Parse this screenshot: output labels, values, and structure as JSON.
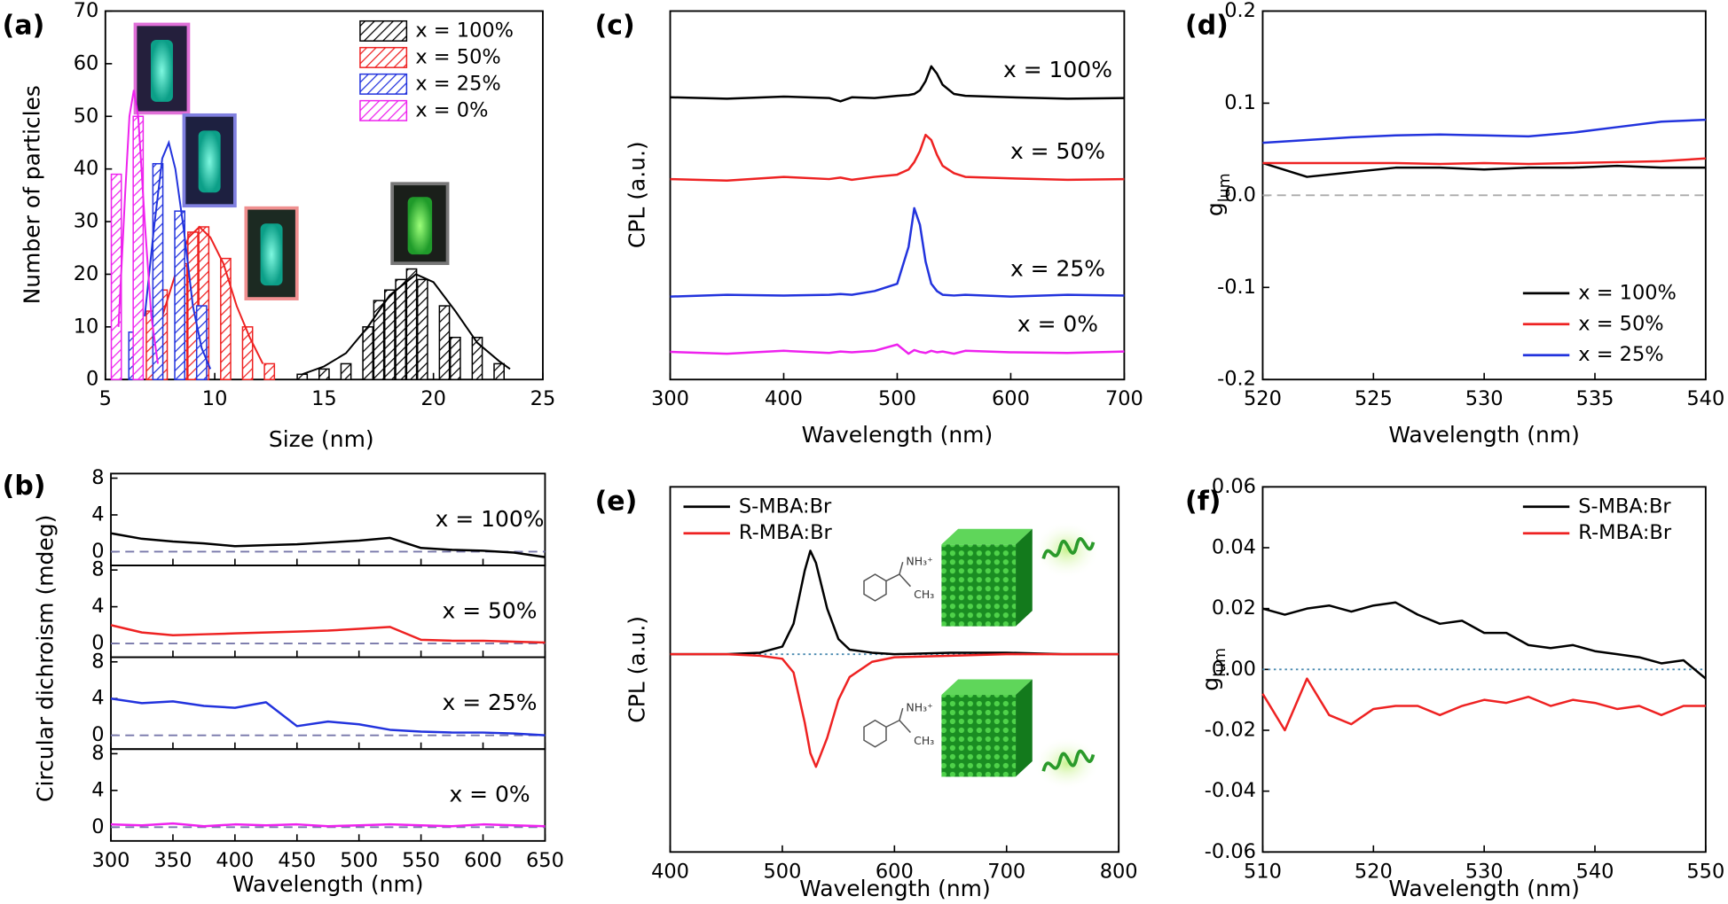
{
  "chart_data": [
    {
      "type": "bar",
      "label": "(a)",
      "xlabel": "Size (nm)",
      "ylabel": "Number of particles",
      "xlim": [
        5,
        25
      ],
      "xticks": [
        5,
        10,
        15,
        20,
        25
      ],
      "ylim": [
        0,
        70
      ],
      "yticks": [
        0,
        10,
        20,
        30,
        40,
        50,
        60,
        70
      ],
      "legend": "upper right",
      "hatch": true,
      "series": [
        {
          "name": "x = 100%",
          "color": "#000000",
          "x": [
            14,
            15,
            16,
            17,
            17.5,
            18,
            18.5,
            19,
            19.5,
            20.5,
            21,
            22,
            23
          ],
          "values": [
            1,
            2,
            3,
            10,
            15,
            17,
            19,
            21,
            19,
            14,
            8,
            8,
            3
          ],
          "fit": {
            "x": [
              14,
              15,
              16,
              17,
              18,
              19.2,
              20,
              21,
              22,
              23,
              23.5
            ],
            "values": [
              1,
              2.5,
              5,
              10,
              16,
              20,
              18.5,
              13,
              7,
              3.5,
              2
            ]
          }
        },
        {
          "name": "x = 50%",
          "color": "#ee2222",
          "x": [
            7.1,
            7.6,
            8.5,
            9,
            9.5,
            10.5,
            11.5,
            12.5
          ],
          "values": [
            13,
            17,
            22,
            28,
            29,
            23,
            10,
            3
          ],
          "fit": {
            "x": [
              7.6,
              8.2,
              8.8,
              9.3,
              9.8,
              10.4,
              11,
              11.6,
              12.2
            ],
            "values": [
              12,
              20,
              27,
              29,
              27,
              22,
              14,
              8,
              3
            ]
          }
        },
        {
          "name": "x = 25%",
          "color": "#2233dd",
          "x": [
            6.3,
            7.4,
            8.4,
            9.4
          ],
          "values": [
            9,
            41,
            32,
            14
          ],
          "fit": {
            "x": [
              6.8,
              7.2,
              7.6,
              7.9,
              8.2,
              8.6,
              9.0,
              9.4,
              9.8
            ],
            "values": [
              12,
              28,
              42,
              45,
              40,
              28,
              14,
              6,
              2
            ]
          }
        },
        {
          "name": "x = 0%",
          "color": "#ee22ee",
          "x": [
            5.5,
            6.5
          ],
          "values": [
            39,
            50
          ],
          "fit": {
            "x": [
              5.6,
              5.9,
              6.1,
              6.3,
              6.5,
              6.8,
              7.1,
              7.4
            ],
            "values": [
              10,
              35,
              50,
              55,
              50,
              30,
              12,
              3
            ]
          }
        }
      ]
    },
    {
      "type": "line",
      "label": "(b)",
      "xlabel": "Wavelength (nm)",
      "ylabel": "Circular dichroism (mdeg)",
      "stacked": true,
      "series_labels": "inline",
      "x": [
        300,
        325,
        350,
        375,
        400,
        425,
        450,
        475,
        500,
        525,
        550,
        575,
        600,
        625,
        650
      ],
      "xlim": [
        300,
        650
      ],
      "xticks": [
        300,
        350,
        400,
        450,
        500,
        550,
        600,
        650
      ],
      "ylim": [
        -1.5,
        8.5
      ],
      "yticks": [
        0,
        4,
        8
      ],
      "reference_line": {
        "value": 0,
        "color": "#7777aa",
        "dash": "dashed"
      },
      "series": [
        {
          "name": "x = 100%",
          "color": "#000000",
          "values": [
            2.0,
            1.4,
            1.1,
            0.9,
            0.6,
            0.7,
            0.8,
            1.0,
            1.2,
            1.5,
            0.4,
            0.2,
            0.1,
            -0.1,
            -0.6
          ]
        },
        {
          "name": "x = 50%",
          "color": "#ee2222",
          "values": [
            2.0,
            1.2,
            0.9,
            1.0,
            1.1,
            1.2,
            1.3,
            1.4,
            1.6,
            1.8,
            0.4,
            0.3,
            0.3,
            0.2,
            0.1
          ]
        },
        {
          "name": "x = 25%",
          "color": "#2233dd",
          "values": [
            4.0,
            3.5,
            3.7,
            3.2,
            3.0,
            3.6,
            1.0,
            1.5,
            1.2,
            0.6,
            0.4,
            0.3,
            0.3,
            0.2,
            0.0
          ]
        },
        {
          "name": "x = 0%",
          "color": "#ee22ee",
          "values": [
            0.3,
            0.2,
            0.4,
            0.1,
            0.3,
            0.2,
            0.3,
            0.1,
            0.2,
            0.3,
            0.2,
            0.1,
            0.3,
            0.2,
            0.1
          ]
        }
      ]
    },
    {
      "type": "line",
      "label": "(c)",
      "xlabel": "Wavelength (nm)",
      "ylabel": "CPL (a.u.)",
      "series_labels": "inline",
      "x": [
        300,
        350,
        400,
        440,
        450,
        460,
        480,
        500,
        510,
        515,
        520,
        525,
        530,
        535,
        540,
        550,
        560,
        600,
        650,
        700
      ],
      "xlim": [
        300,
        700
      ],
      "xticks": [
        300,
        400,
        500,
        600,
        700
      ],
      "ylim": [
        0,
        10
      ],
      "series": [
        {
          "name": "x = 100%",
          "color": "#000000",
          "values": [
            7.66,
            7.62,
            7.68,
            7.64,
            7.55,
            7.66,
            7.64,
            7.7,
            7.72,
            7.75,
            7.85,
            8.1,
            8.5,
            8.3,
            8.0,
            7.75,
            7.7,
            7.66,
            7.62,
            7.64
          ]
        },
        {
          "name": "x = 50%",
          "color": "#ee2222",
          "values": [
            5.44,
            5.4,
            5.5,
            5.44,
            5.48,
            5.42,
            5.5,
            5.56,
            5.7,
            5.9,
            6.2,
            6.64,
            6.5,
            6.1,
            5.8,
            5.6,
            5.5,
            5.46,
            5.42,
            5.44
          ]
        },
        {
          "name": "x = 25%",
          "color": "#2233dd",
          "values": [
            2.25,
            2.3,
            2.28,
            2.3,
            2.32,
            2.3,
            2.4,
            2.6,
            3.6,
            4.65,
            4.2,
            3.2,
            2.6,
            2.4,
            2.3,
            2.28,
            2.3,
            2.25,
            2.3,
            2.28
          ]
        },
        {
          "name": "x = 0%",
          "color": "#ee22ee",
          "values": [
            0.75,
            0.7,
            0.78,
            0.72,
            0.76,
            0.74,
            0.78,
            0.95,
            0.7,
            0.8,
            0.75,
            0.72,
            0.78,
            0.74,
            0.76,
            0.7,
            0.78,
            0.74,
            0.72,
            0.76
          ]
        }
      ]
    },
    {
      "type": "line",
      "label": "(d)",
      "xlabel": "Wavelength (nm)",
      "ylabel": {
        "main": "g",
        "sub": "lum"
      },
      "x": [
        520,
        522,
        524,
        526,
        528,
        530,
        532,
        534,
        536,
        538,
        540
      ],
      "xlim": [
        520,
        540
      ],
      "xticks": [
        520,
        525,
        530,
        535,
        540
      ],
      "ylim": [
        -0.2,
        0.2
      ],
      "yticks": [
        -0.2,
        -0.1,
        {
          "value": 0,
          "label": "0.0"
        },
        0.1,
        0.2
      ],
      "reference_line": {
        "value": 0,
        "color": "#aaaaaa",
        "dash": "dashed"
      },
      "legend": "lower right",
      "series": [
        {
          "name": "x = 100%",
          "color": "#000000",
          "values": [
            0.035,
            0.02,
            0.025,
            0.03,
            0.03,
            0.028,
            0.03,
            0.03,
            0.032,
            0.03,
            0.03
          ]
        },
        {
          "name": "x = 50%",
          "color": "#ee2222",
          "values": [
            0.035,
            0.035,
            0.035,
            0.035,
            0.034,
            0.035,
            0.034,
            0.035,
            0.036,
            0.037,
            0.04
          ]
        },
        {
          "name": "x = 25%",
          "color": "#2233dd",
          "values": [
            0.057,
            0.06,
            0.063,
            0.065,
            0.066,
            0.065,
            0.064,
            0.068,
            0.074,
            0.08,
            0.082
          ]
        }
      ]
    },
    {
      "type": "line",
      "label": "(e)",
      "xlabel": "Wavelength (nm)",
      "ylabel": "CPL (a.u.)",
      "x": [
        400,
        450,
        480,
        500,
        510,
        520,
        525,
        530,
        540,
        550,
        560,
        580,
        600,
        650,
        700,
        750,
        800
      ],
      "xlim": [
        400,
        800
      ],
      "xticks": [
        400,
        500,
        600,
        700,
        800
      ],
      "ylim": [
        -1.3,
        1.1
      ],
      "reference_line": {
        "value": 0,
        "color": "#4a8ab0",
        "dash": "dotted"
      },
      "legend": "upper left",
      "annotations": [
        "NH₃⁺",
        "CH₃",
        "NH₃⁺",
        "CH₃"
      ],
      "series": [
        {
          "name": "S-MBA:Br",
          "color": "#000000",
          "values": [
            0,
            0,
            0.01,
            0.05,
            0.2,
            0.55,
            0.68,
            0.6,
            0.3,
            0.1,
            0.03,
            0.01,
            0,
            0.01,
            0.01,
            0,
            0
          ]
        },
        {
          "name": "R-MBA:Br",
          "color": "#ee2222",
          "values": [
            0,
            0,
            -0.01,
            -0.03,
            -0.12,
            -0.45,
            -0.65,
            -0.74,
            -0.55,
            -0.3,
            -0.15,
            -0.05,
            -0.02,
            -0.01,
            0,
            0,
            0
          ]
        }
      ]
    },
    {
      "type": "line",
      "label": "(f)",
      "xlabel": "Wavelength (nm)",
      "ylabel": {
        "main": "g",
        "sub": "lum"
      },
      "x": [
        510,
        512,
        514,
        516,
        518,
        520,
        522,
        524,
        526,
        528,
        530,
        532,
        534,
        536,
        538,
        540,
        542,
        544,
        546,
        548,
        550
      ],
      "xlim": [
        510,
        550
      ],
      "xticks": [
        510,
        520,
        530,
        540,
        550
      ],
      "ylim": [
        -0.06,
        0.06
      ],
      "yticks": [
        -0.06,
        -0.04,
        -0.02,
        {
          "value": 0,
          "label": "0.00"
        },
        0.02,
        0.04,
        0.06
      ],
      "reference_line": {
        "value": 0,
        "color": "#4a8ab0",
        "dash": "dotted"
      },
      "legend": "upper right",
      "series": [
        {
          "name": "S-MBA:Br",
          "color": "#000000",
          "values": [
            0.02,
            0.018,
            0.02,
            0.021,
            0.019,
            0.021,
            0.022,
            0.018,
            0.015,
            0.016,
            0.012,
            0.012,
            0.008,
            0.007,
            0.008,
            0.006,
            0.005,
            0.004,
            0.002,
            0.003,
            -0.003
          ]
        },
        {
          "name": "R-MBA:Br",
          "color": "#ee2222",
          "values": [
            -0.008,
            -0.02,
            -0.003,
            -0.015,
            -0.018,
            -0.013,
            -0.012,
            -0.012,
            -0.015,
            -0.012,
            -0.01,
            -0.011,
            -0.009,
            -0.012,
            -0.01,
            -0.011,
            -0.013,
            -0.012,
            -0.015,
            -0.012,
            -0.012
          ]
        }
      ]
    }
  ]
}
